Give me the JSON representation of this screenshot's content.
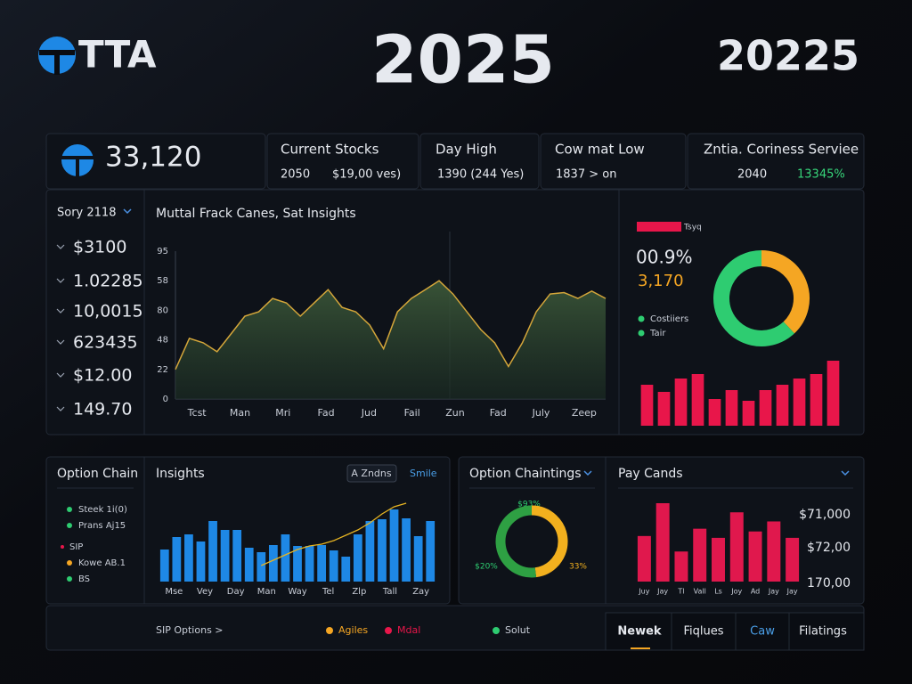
{
  "header": {
    "logo": "TTA",
    "title": "2025",
    "year": "20225"
  },
  "summary": {
    "value": "33,120"
  },
  "cards": [
    {
      "title": "Current Stocks",
      "items": [
        "2050",
        "$19,00 ves)"
      ]
    },
    {
      "title": "Day High",
      "items": [
        "1390 (244 Yes)"
      ]
    },
    {
      "title": "Cow mat Low",
      "items": [
        "1837 > on"
      ]
    },
    {
      "title": "Zntia. Coriness Serviee",
      "items": [
        "2040",
        "13345%"
      ]
    }
  ],
  "sidebar": {
    "filter": "Sory 2118",
    "items": [
      "$3100",
      "1.02285",
      "10,0015",
      "623435",
      "$12.00",
      "149.70"
    ]
  },
  "donut_panel": {
    "badge": "Tsyq",
    "percent": "00.9%",
    "amount": "3,170",
    "legend": [
      "Costiiers",
      "Tair"
    ]
  },
  "option_chain": {
    "title": "Option Chain",
    "legend": [
      "Steek 1i(0)",
      "Prans Aj15",
      "SIP",
      "Kowe AB.1",
      "BS"
    ]
  },
  "insights": {
    "title": "Insights",
    "button": "A Zndns",
    "link": "Smile"
  },
  "option_chaintings": {
    "title": "Option Chaintings",
    "labels": [
      "$93%",
      "$20%",
      "33%"
    ]
  },
  "pay_cands": {
    "title": "Pay Cands",
    "labels": [
      "$71,000",
      "$72,00",
      "170,00"
    ]
  },
  "footer": {
    "link": "SIP Options >",
    "legend": [
      "Agiles",
      "Mdal",
      "Solut"
    ],
    "tabs": [
      "Newek",
      "Fiqlues",
      "Caw",
      "Filatings"
    ]
  },
  "chart_data": [
    {
      "type": "area",
      "title": "Muttal Frack Canes, Sat Insights",
      "y_labels": [
        "95",
        "58",
        "80",
        "48",
        "22",
        "0"
      ],
      "x_labels": [
        "Tcst",
        "Man",
        "Mri",
        "Fad",
        "Jud",
        "Fail",
        "Zun",
        "Fad",
        "July",
        "Zeep"
      ],
      "ylim": [
        0,
        100
      ],
      "series": [
        {
          "color": "#d4a63a",
          "values": [
            20,
            41,
            38,
            32,
            44,
            56,
            59,
            68,
            65,
            56,
            65,
            74,
            62,
            59,
            50,
            34,
            59,
            68,
            74,
            80,
            71,
            59,
            47,
            38,
            22,
            38,
            59,
            71,
            72,
            68,
            73,
            68
          ]
        }
      ]
    },
    {
      "type": "pie",
      "values": [
        38,
        62
      ],
      "colors": [
        "#f5a623",
        "#2ecc71"
      ]
    },
    {
      "type": "bar",
      "series": [
        {
          "color": "#e8164a",
          "values": [
            46,
            38,
            53,
            58,
            30,
            40,
            28,
            40,
            46,
            53,
            58,
            73
          ]
        }
      ]
    },
    {
      "type": "bar",
      "x_labels": [
        "Mse",
        "Vey",
        "Day",
        "Man",
        "Way",
        "Tel",
        "Zlp",
        "Tall",
        "Zay"
      ],
      "series": [
        {
          "color": "#1e88e5",
          "values": [
            36,
            50,
            53,
            45,
            68,
            58,
            58,
            38,
            33,
            41,
            53,
            40,
            40,
            41,
            35,
            28,
            53,
            68,
            70,
            81,
            71,
            51,
            68
          ]
        },
        {
          "type": "line",
          "color": "#e6b422",
          "values": [
            null,
            null,
            null,
            null,
            null,
            null,
            null,
            null,
            18,
            24,
            30,
            36,
            40,
            42,
            46,
            52,
            58,
            66,
            76,
            84,
            88,
            null,
            null
          ]
        }
      ]
    },
    {
      "type": "pie",
      "values": [
        48,
        52
      ],
      "colors": [
        "#f2b01e",
        "#2ea043"
      ]
    },
    {
      "type": "bar",
      "x_labels": [
        "Juy",
        "Jay",
        "Tl",
        "Vall",
        "Ls",
        "Joy",
        "Ad",
        "Jay",
        "Jay"
      ],
      "series": [
        {
          "color": "#e0184d",
          "values": [
            50,
            86,
            33,
            58,
            48,
            76,
            55,
            66,
            48
          ]
        }
      ]
    }
  ]
}
